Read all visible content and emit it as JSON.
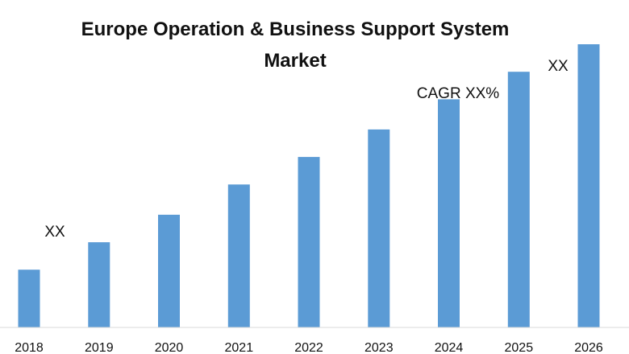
{
  "chart_data": {
    "type": "bar",
    "title": "Europe Operation & Business Support System Market",
    "title_lines": [
      "Europe Operation & Business Support System",
      "Market"
    ],
    "categories": [
      "2018",
      "2019",
      "2020",
      "2021",
      "2022",
      "2023",
      "2024",
      "2025",
      "2026"
    ],
    "values": [
      21,
      31,
      41,
      52,
      62,
      72,
      83,
      93,
      103
    ],
    "ylim": [
      0,
      115
    ],
    "xlabel": "",
    "ylabel": "",
    "grid": false,
    "legend": "none",
    "bar_color": "#5b9bd5",
    "axis_color": "#d9d9d9",
    "annotations": {
      "first": "XX",
      "cagr": "CAGR XX%",
      "last": "XX"
    }
  }
}
